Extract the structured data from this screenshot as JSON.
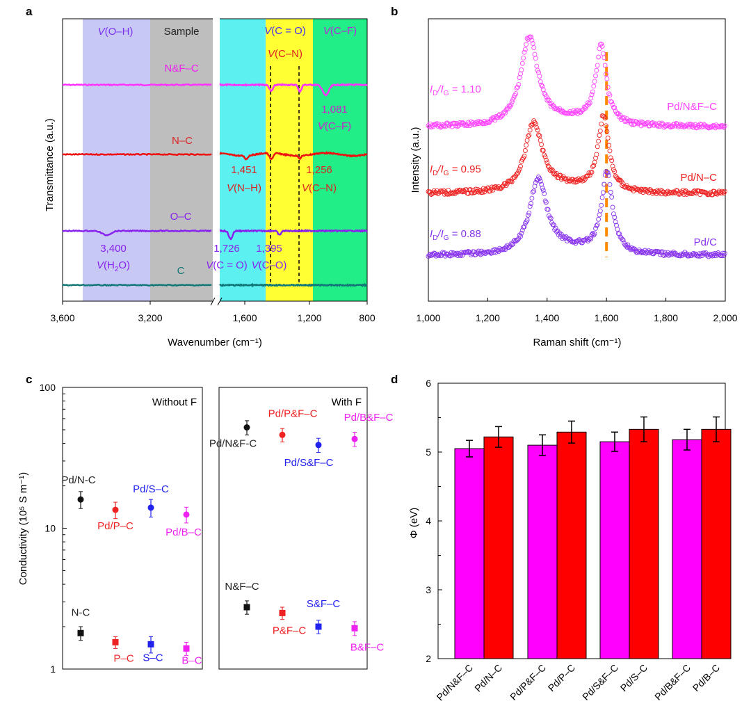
{
  "chart_data": [
    {
      "panel": "a",
      "type": "line",
      "xlabel": "Wavenumber (cm⁻¹)",
      "ylabel": "Transmittance (a.u.)",
      "x_ticks": [
        "3,600",
        "3,200",
        "1,600",
        "1,200",
        "800"
      ],
      "axis_break": true,
      "regions": [
        {
          "label": "V(O–H)",
          "color": "#c8c8f5"
        },
        {
          "label": "Sample",
          "color": "#bebebe"
        },
        {
          "label": "V(C = O)",
          "color": "#5cf0f0"
        },
        {
          "label": "V(C–N)",
          "color": "#ffff33"
        },
        {
          "label": "V(C–F)",
          "color": "#22ee88"
        }
      ],
      "series": [
        {
          "name": "N&F–C",
          "color": "#ff33ff"
        },
        {
          "name": "N–C",
          "color": "#ee1111"
        },
        {
          "name": "O–C",
          "color": "#8822ee"
        },
        {
          "name": "C",
          "color": "#117777"
        }
      ],
      "annotations": [
        {
          "value": "1,081",
          "label": "V(C–F)",
          "color": "#cc22cc"
        },
        {
          "value": "1,451",
          "label": "V(N–H)",
          "color": "#dd2222"
        },
        {
          "value": "1,256",
          "label": "V(C–N)",
          "color": "#dd2222"
        },
        {
          "value": "3,400",
          "label": "V(H2O)",
          "color": "#8822ee"
        },
        {
          "value": "1,726",
          "label": "V(C = O)",
          "color": "#8822ee"
        },
        {
          "value": "1,395",
          "label": "V(C–O)",
          "color": "#8822ee"
        }
      ]
    },
    {
      "panel": "b",
      "type": "scatter",
      "xlabel": "Raman shift (cm⁻¹)",
      "ylabel": "Intensity (a.u.)",
      "xlim": [
        1000,
        2000
      ],
      "x_ticks": [
        "1,000",
        "1,200",
        "1,400",
        "1,600",
        "1,800",
        "2,000"
      ],
      "reference_line_x": 1600,
      "series": [
        {
          "name": "Pd/N&F–C",
          "ratio_label": "ID/IG = 1.10",
          "color": "#ff44ff",
          "d_peak": 1340,
          "g_peak": 1582
        },
        {
          "name": "Pd/N–C",
          "ratio_label": "ID/IG = 0.95",
          "color": "#ee2222",
          "d_peak": 1355,
          "g_peak": 1590
        },
        {
          "name": "Pd/C",
          "ratio_label": "ID/IG = 0.88",
          "color": "#8833ee",
          "d_peak": 1370,
          "g_peak": 1602
        }
      ]
    },
    {
      "panel": "c",
      "type": "scatter",
      "ylabel": "Conductivity (10⁵ S m⁻¹)",
      "y_scale": "log",
      "ylim": [
        1,
        100
      ],
      "y_ticks": [
        "1",
        "10",
        "100"
      ],
      "subpanels": [
        {
          "title": "Without F",
          "points": [
            {
              "label": "Pd/N-C",
              "value": 16,
              "err": 2.2,
              "marker": "circle",
              "color": "#111111"
            },
            {
              "label": "Pd/P–C",
              "value": 13.5,
              "err": 1.8,
              "marker": "circle",
              "color": "#ee2222"
            },
            {
              "label": "Pd/S–C",
              "value": 14,
              "err": 2.0,
              "marker": "circle",
              "color": "#2222ee"
            },
            {
              "label": "Pd/B–C",
              "value": 12.5,
              "err": 1.6,
              "marker": "circle",
              "color": "#ee22ee"
            },
            {
              "label": "N-C",
              "value": 1.8,
              "err": 0.2,
              "marker": "square",
              "color": "#111111"
            },
            {
              "label": "P–C",
              "value": 1.55,
              "err": 0.15,
              "marker": "square",
              "color": "#ee2222"
            },
            {
              "label": "S–C",
              "value": 1.5,
              "err": 0.2,
              "marker": "square",
              "color": "#2222ee"
            },
            {
              "label": "B–C",
              "value": 1.4,
              "err": 0.15,
              "marker": "square",
              "color": "#ee22ee"
            }
          ]
        },
        {
          "title": "With F",
          "points": [
            {
              "label": "Pd/N&F-C",
              "value": 52,
              "err": 6,
              "marker": "circle",
              "color": "#111111"
            },
            {
              "label": "Pd/P&F–C",
              "value": 46,
              "err": 5,
              "marker": "circle",
              "color": "#ee2222"
            },
            {
              "label": "Pd/S&F–C",
              "value": 39,
              "err": 4.5,
              "marker": "circle",
              "color": "#2222ee"
            },
            {
              "label": "Pd/B&F–C",
              "value": 43,
              "err": 5,
              "marker": "circle",
              "color": "#ee22ee"
            },
            {
              "label": "N&F–C",
              "value": 2.75,
              "err": 0.3,
              "marker": "square",
              "color": "#111111"
            },
            {
              "label": "P&F–C",
              "value": 2.5,
              "err": 0.25,
              "marker": "square",
              "color": "#ee2222"
            },
            {
              "label": "S&F–C",
              "value": 2.0,
              "err": 0.22,
              "marker": "square",
              "color": "#2222ee"
            },
            {
              "label": "B&F–C",
              "value": 1.95,
              "err": 0.22,
              "marker": "square",
              "color": "#ee22ee"
            }
          ]
        }
      ]
    },
    {
      "panel": "d",
      "type": "bar",
      "ylabel": "Φ (eV)",
      "ylim": [
        2,
        6
      ],
      "y_ticks": [
        "2",
        "3",
        "4",
        "5",
        "6"
      ],
      "categories": [
        "Pd/N&F–C",
        "Pd/N–C",
        "Pd/P&F–C",
        "Pd/P–C",
        "Pd/S&F–C",
        "Pd/S–C",
        "Pd/B&F–C",
        "Pd/B–C"
      ],
      "values": [
        5.05,
        5.22,
        5.1,
        5.29,
        5.15,
        5.33,
        5.18,
        5.33
      ],
      "errors": [
        0.12,
        0.15,
        0.15,
        0.16,
        0.14,
        0.18,
        0.15,
        0.18
      ],
      "colors": [
        "#ff00ff",
        "#ff0000",
        "#ff00ff",
        "#ff0000",
        "#ff00ff",
        "#ff0000",
        "#ff00ff",
        "#ff0000"
      ]
    }
  ]
}
